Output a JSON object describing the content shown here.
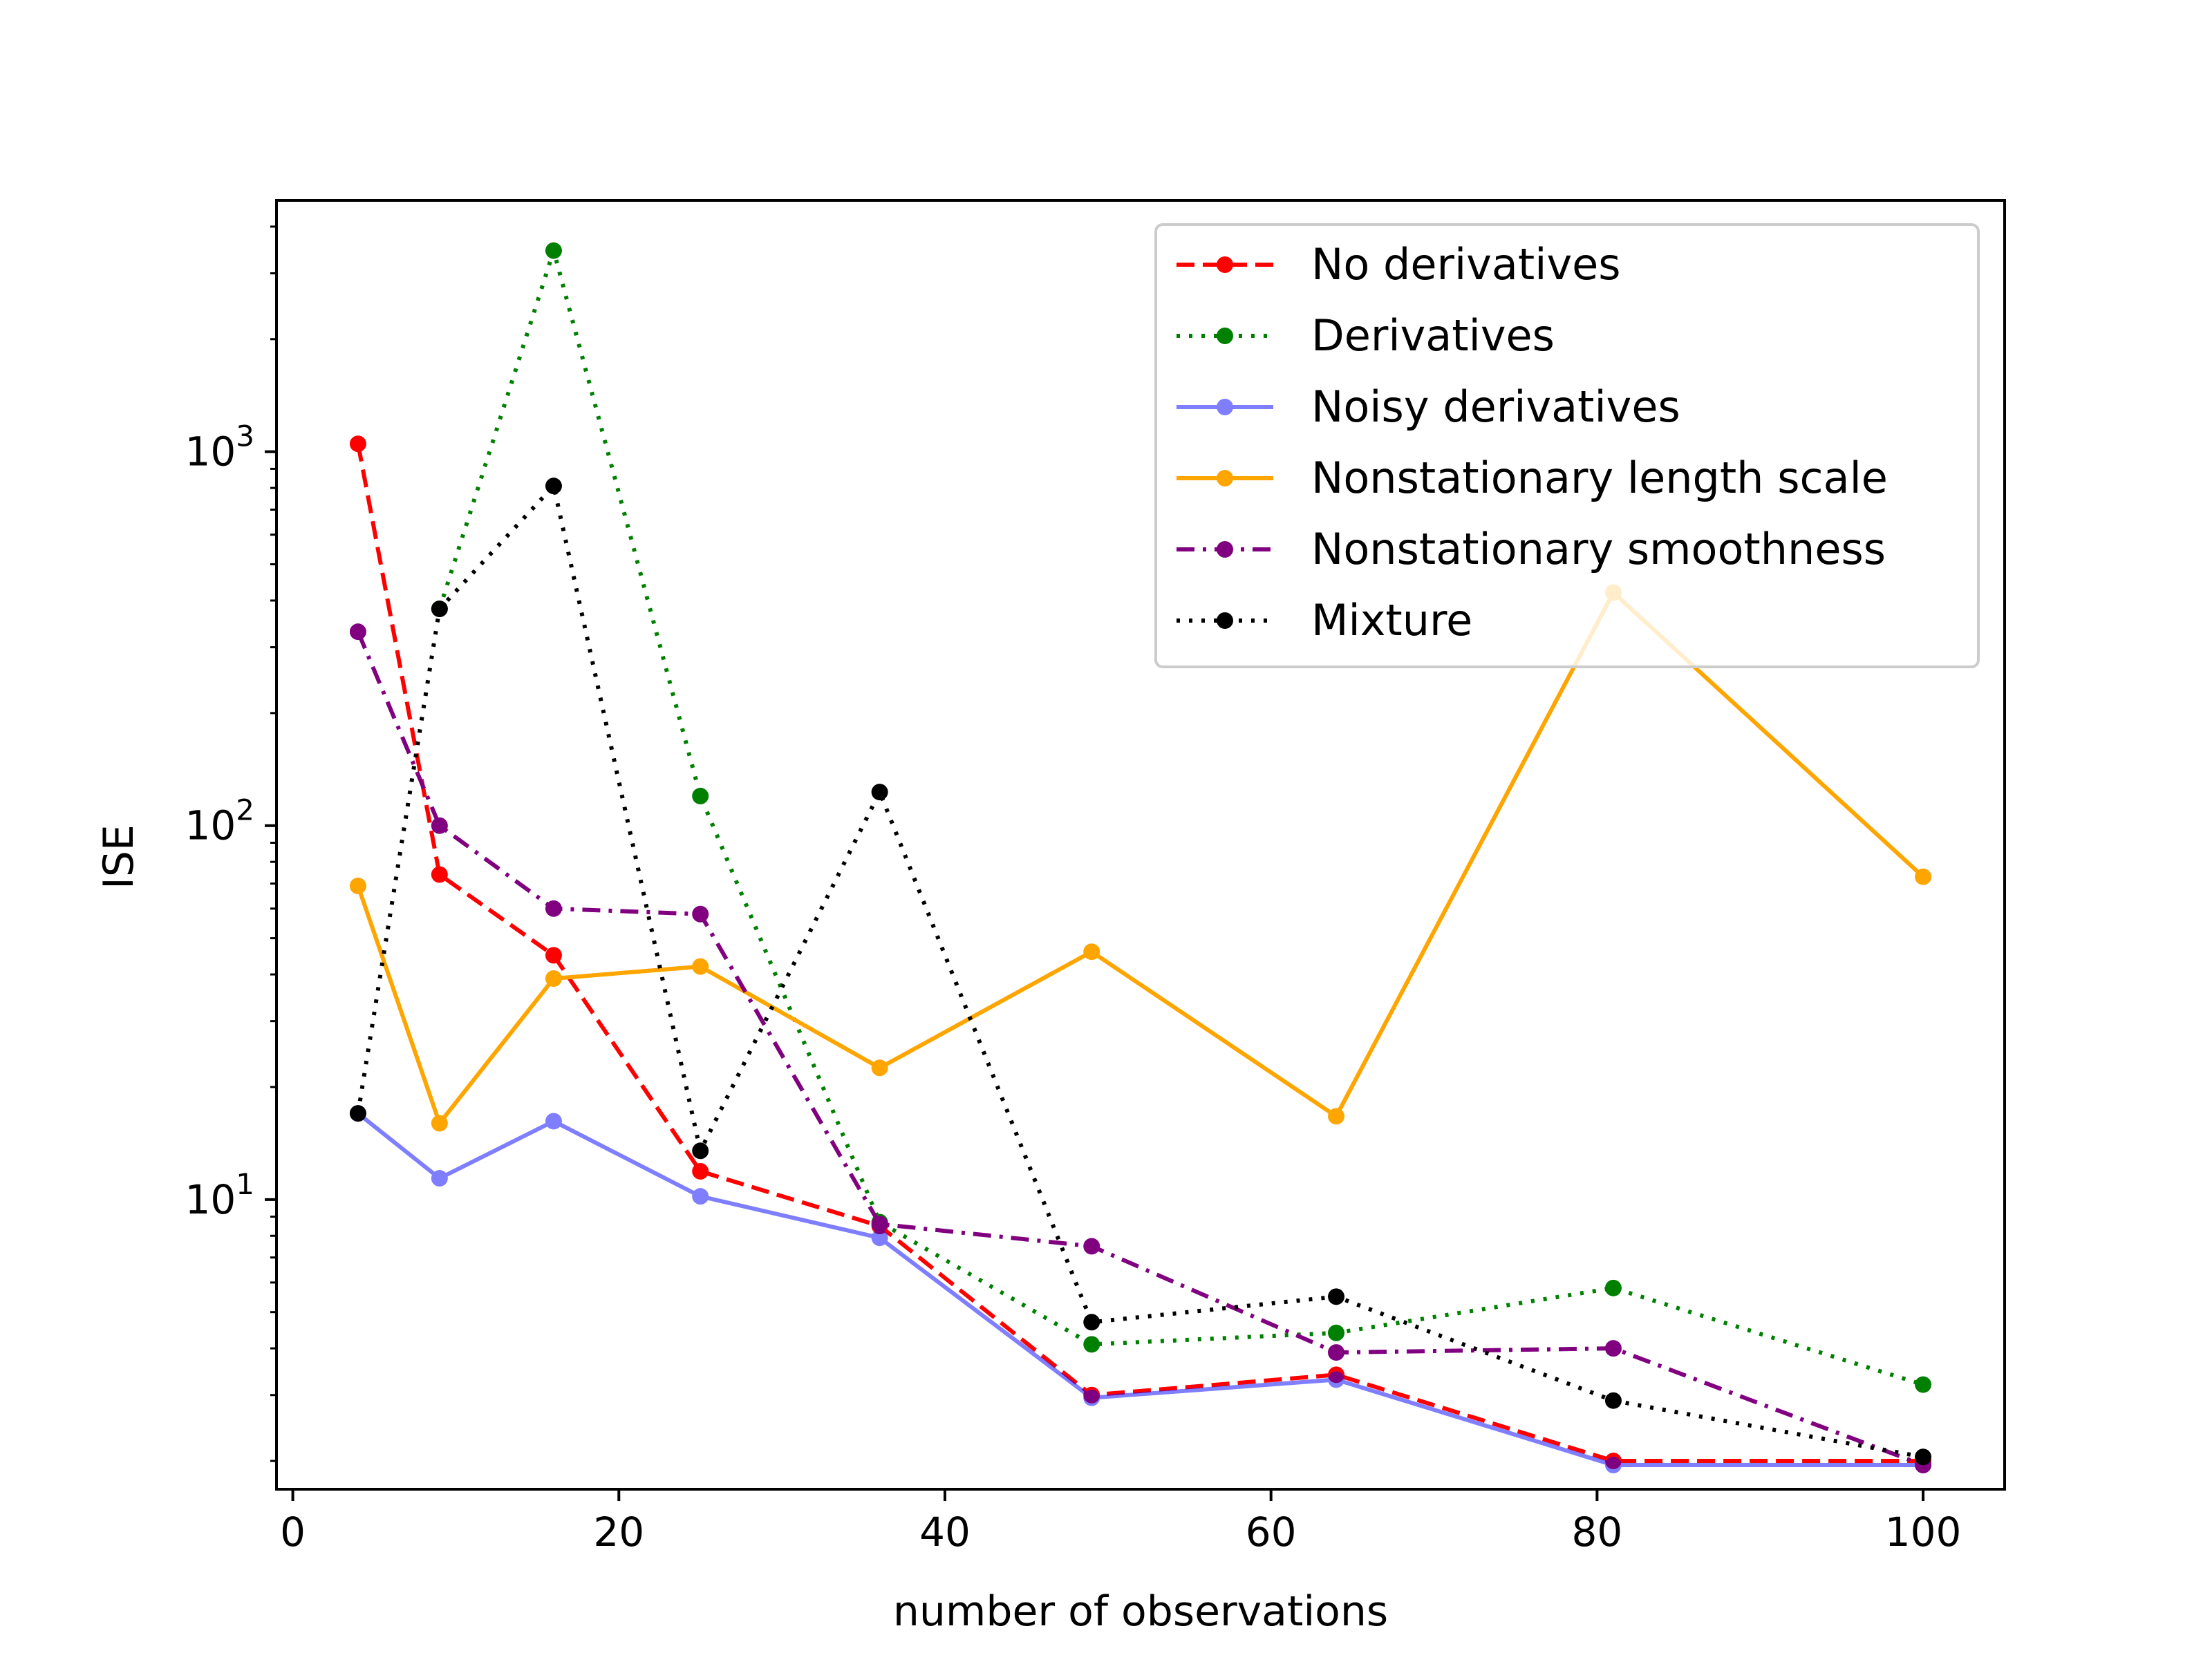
{
  "chart_data": {
    "type": "line",
    "title": "",
    "xlabel": "number of observations",
    "ylabel": "ISE",
    "xlim": [
      -1,
      105
    ],
    "ylim": [
      1.68,
      4700
    ],
    "yscale": "log",
    "grid": false,
    "legend_position": "top-right",
    "x_ticks": [
      0,
      20,
      40,
      60,
      80,
      100
    ],
    "x_tick_labels": [
      "0",
      "20",
      "40",
      "60",
      "80",
      "100"
    ],
    "y_ticks": [
      {
        "value": 10,
        "base": "10",
        "exp": "1"
      },
      {
        "value": 100,
        "base": "10",
        "exp": "2"
      },
      {
        "value": 1000,
        "base": "10",
        "exp": "3"
      }
    ],
    "x": [
      4,
      9,
      16,
      25,
      36,
      49,
      64,
      81,
      100
    ],
    "series": [
      {
        "name": "No derivatives",
        "color": "#ff0000",
        "dash": "dashed",
        "opacity": 1,
        "values": [
          1050,
          74,
          45,
          11.9,
          8.5,
          3.0,
          3.4,
          2.0,
          2.0
        ]
      },
      {
        "name": "Derivatives",
        "color": "#008000",
        "dash": "dotted",
        "opacity": 1,
        "values": [
          null,
          380,
          3450,
          120,
          8.7,
          4.1,
          4.4,
          5.8,
          3.2
        ]
      },
      {
        "name": "Noisy derivatives",
        "color": "#0000ff",
        "dash": "solid",
        "opacity": 0.5,
        "values": [
          17,
          11.4,
          16.2,
          10.2,
          7.9,
          2.95,
          3.3,
          1.95,
          1.95
        ]
      },
      {
        "name": "Nonstationary length scale",
        "color": "#ffa500",
        "dash": "solid",
        "opacity": 1,
        "values": [
          69,
          16,
          39,
          42,
          22.5,
          46,
          16.7,
          420,
          73
        ]
      },
      {
        "name": "Nonstationary smoothness",
        "color": "#800080",
        "dash": "dashdot",
        "opacity": 1,
        "values": [
          330,
          100,
          60,
          58,
          8.6,
          7.5,
          3.9,
          4.0,
          1.95
        ]
      },
      {
        "name": "Mixture",
        "color": "#000000",
        "dash": "dotted",
        "opacity": 1,
        "values": [
          17,
          380,
          810,
          13.5,
          123,
          4.7,
          5.5,
          2.9,
          2.05
        ]
      }
    ]
  }
}
